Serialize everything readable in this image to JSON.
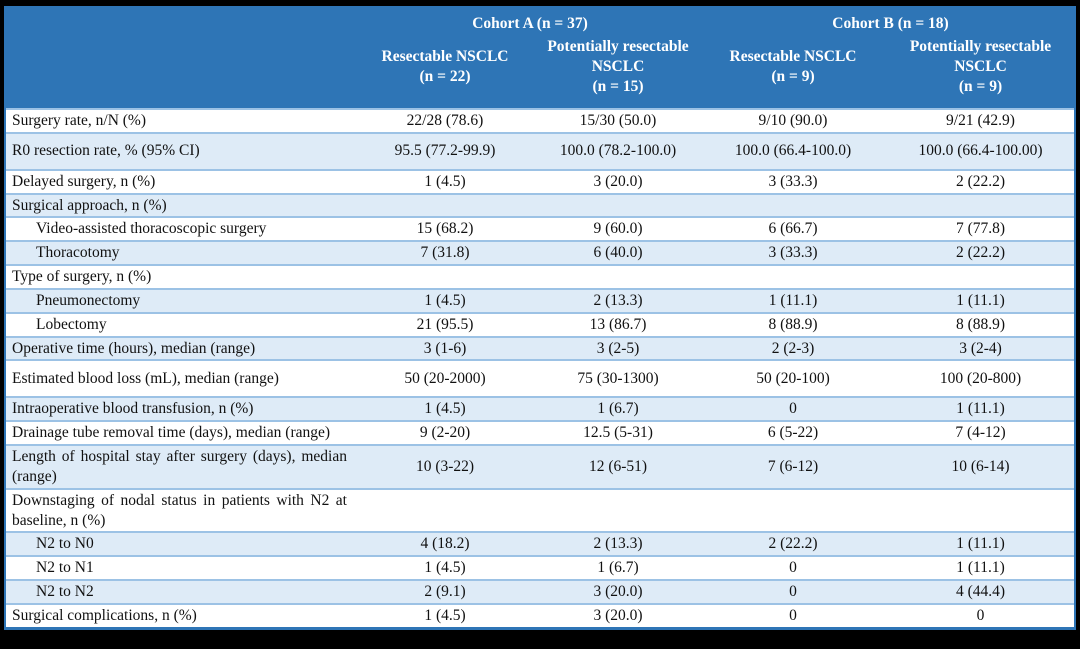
{
  "table": {
    "cohorts": [
      {
        "label": "Cohort A (n = 37)"
      },
      {
        "label": "Cohort B (n = 18)"
      }
    ],
    "columns": [
      {
        "title": "Resectable NSCLC",
        "n": "(n = 22)"
      },
      {
        "title": "Potentially resectable NSCLC",
        "n": "(n = 15)"
      },
      {
        "title": "Resectable NSCLC",
        "n": "(n = 9)"
      },
      {
        "title": "Potentially resectable NSCLC",
        "n": "(n = 9)"
      }
    ],
    "rows": [
      {
        "label": "Surgery rate, n/N (%)",
        "indent": false,
        "tall": false,
        "values": [
          "22/28 (78.6)",
          "15/30 (50.0)",
          "9/10 (90.0)",
          "9/21 (42.9)"
        ]
      },
      {
        "label": "R0 resection rate, % (95% CI)",
        "indent": false,
        "tall": true,
        "values": [
          "95.5 (77.2-99.9)",
          "100.0 (78.2-100.0)",
          "100.0 (66.4-100.0)",
          "100.0 (66.4-100.00)"
        ]
      },
      {
        "label": "Delayed surgery, n (%)",
        "indent": false,
        "tall": false,
        "values": [
          "1 (4.5)",
          "3 (20.0)",
          "3 (33.3)",
          "2 (22.2)"
        ]
      },
      {
        "label": "Surgical approach, n (%)",
        "indent": false,
        "tall": false,
        "values": [
          "",
          "",
          "",
          ""
        ]
      },
      {
        "label": "Video-assisted thoracoscopic surgery",
        "indent": true,
        "tall": false,
        "values": [
          "15 (68.2)",
          "9 (60.0)",
          "6 (66.7)",
          "7 (77.8)"
        ]
      },
      {
        "label": "Thoracotomy",
        "indent": true,
        "tall": false,
        "values": [
          "7 (31.8)",
          "6 (40.0)",
          "3 (33.3)",
          "2 (22.2)"
        ]
      },
      {
        "label": "Type of surgery, n (%)",
        "indent": false,
        "tall": false,
        "values": [
          "",
          "",
          "",
          ""
        ]
      },
      {
        "label": "Pneumonectomy",
        "indent": true,
        "tall": false,
        "values": [
          "1 (4.5)",
          "2 (13.3)",
          "1 (11.1)",
          "1 (11.1)"
        ]
      },
      {
        "label": "Lobectomy",
        "indent": true,
        "tall": false,
        "values": [
          "21 (95.5)",
          "13 (86.7)",
          "8 (88.9)",
          "8 (88.9)"
        ]
      },
      {
        "label": "Operative time (hours), median (range)",
        "indent": false,
        "tall": false,
        "values": [
          "3 (1-6)",
          "3 (2-5)",
          "2 (2-3)",
          "3 (2-4)"
        ]
      },
      {
        "label": "Estimated blood loss (mL), median (range)",
        "indent": false,
        "tall": true,
        "values": [
          "50 (20-2000)",
          "75 (30-1300)",
          "50 (20-100)",
          "100 (20-800)"
        ]
      },
      {
        "label": "Intraoperative blood transfusion, n (%)",
        "indent": false,
        "tall": false,
        "values": [
          "1 (4.5)",
          "1 (6.7)",
          "0",
          "1 (11.1)"
        ]
      },
      {
        "label": "Drainage tube removal time (days), median (range)",
        "indent": false,
        "tall": false,
        "values": [
          "9 (2-20)",
          "12.5 (5-31)",
          "6 (5-22)",
          "7 (4-12)"
        ]
      },
      {
        "label": "Length of hospital stay after surgery (days), median (range)",
        "indent": false,
        "tall": false,
        "values": [
          "10 (3-22)",
          "12 (6-51)",
          "7 (6-12)",
          "10 (6-14)"
        ]
      },
      {
        "label": "Downstaging of nodal status in patients with N2 at baseline, n (%)",
        "indent": false,
        "tall": false,
        "values": [
          "",
          "",
          "",
          ""
        ]
      },
      {
        "label": "N2 to N0",
        "indent": true,
        "tall": false,
        "values": [
          "4 (18.2)",
          "2 (13.3)",
          "2 (22.2)",
          "1 (11.1)"
        ]
      },
      {
        "label": "N2 to N1",
        "indent": true,
        "tall": false,
        "values": [
          "1 (4.5)",
          "1 (6.7)",
          "0",
          "1 (11.1)"
        ]
      },
      {
        "label": "N2 to N2",
        "indent": true,
        "tall": false,
        "values": [
          "2 (9.1)",
          "3 (20.0)",
          "0",
          "4 (44.4)"
        ]
      },
      {
        "label": "Surgical complications, n (%)",
        "indent": false,
        "tall": false,
        "values": [
          "1 (4.5)",
          "3 (20.0)",
          "0",
          "0"
        ]
      }
    ]
  },
  "colors": {
    "header_bg": "#2E75B6",
    "band_bg": "#DEEBF7",
    "line_light": "#9CC2E5",
    "line_strong": "#2E75B6"
  }
}
